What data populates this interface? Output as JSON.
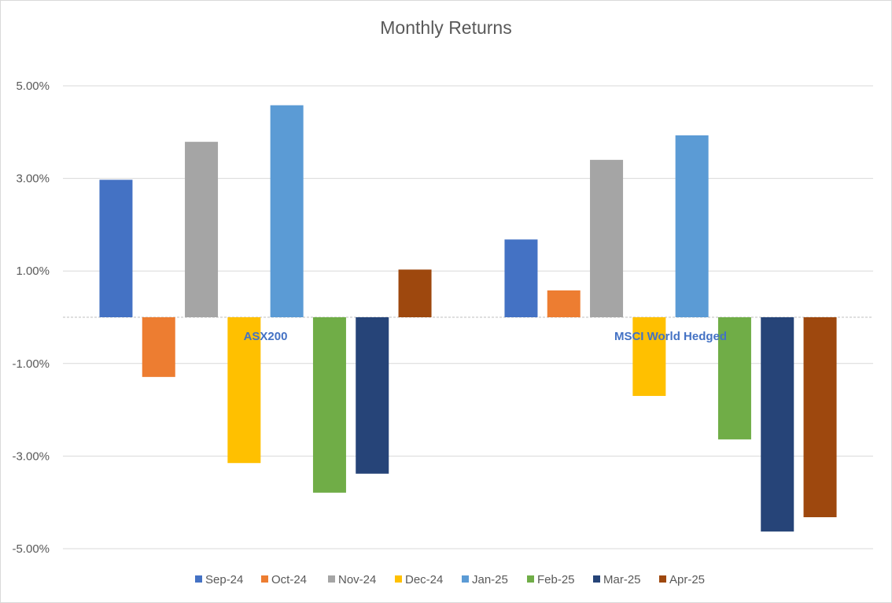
{
  "chart_data": {
    "type": "bar",
    "title": "Monthly Returns",
    "categories": [
      "ASX200",
      "MSCI World Hedged"
    ],
    "series": [
      {
        "name": "Sep-24",
        "color": "#4472c4",
        "values": [
          2.97,
          1.68
        ]
      },
      {
        "name": "Oct-24",
        "color": "#ed7d31",
        "values": [
          -1.29,
          0.58
        ]
      },
      {
        "name": "Nov-24",
        "color": "#a5a5a5",
        "values": [
          3.79,
          3.4
        ]
      },
      {
        "name": "Dec-24",
        "color": "#ffc000",
        "values": [
          -3.15,
          -1.7
        ]
      },
      {
        "name": "Jan-25",
        "color": "#5b9bd5",
        "values": [
          4.58,
          3.93
        ]
      },
      {
        "name": "Feb-25",
        "color": "#70ad47",
        "values": [
          -3.79,
          -2.64
        ]
      },
      {
        "name": "Mar-25",
        "color": "#264478",
        "values": [
          -3.38,
          -4.63
        ]
      },
      {
        "name": "Apr-25",
        "color": "#9e480e",
        "values": [
          1.03,
          -4.32
        ]
      }
    ],
    "y_ticks": [
      5,
      3,
      1,
      -1,
      -3,
      -5
    ],
    "y_tick_labels": [
      "5.00%",
      "3.00%",
      "1.00%",
      "-1.00%",
      "-3.00%",
      "-5.00%"
    ],
    "ylim": [
      -5,
      5
    ],
    "grid": true,
    "legend_position": "bottom",
    "xlabel": "",
    "ylabel": ""
  }
}
